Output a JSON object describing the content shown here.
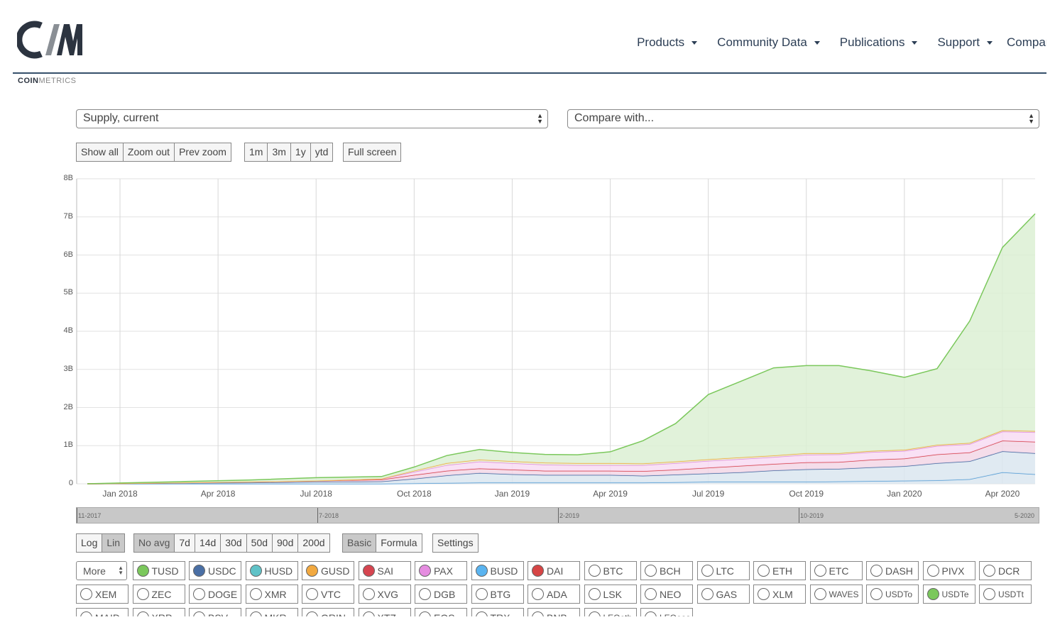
{
  "brand": {
    "logo_letters": "CM",
    "word_bold": "COIN",
    "word_light": "METRICS",
    "color": "#2c3440"
  },
  "nav": {
    "items": [
      {
        "label": "Products"
      },
      {
        "label": "Community Data"
      },
      {
        "label": "Publications"
      },
      {
        "label": "Support"
      }
    ],
    "clipped": "Compar"
  },
  "controls": {
    "metric_select": "Supply, current",
    "compare_select": "Compare with...",
    "zoom_buttons": [
      "Show all",
      "Zoom out",
      "Prev zoom"
    ],
    "range_buttons": [
      "1m",
      "3m",
      "1y",
      "ytd"
    ],
    "fullscreen": "Full screen",
    "scale_buttons": [
      {
        "label": "Log",
        "active": false
      },
      {
        "label": "Lin",
        "active": true
      }
    ],
    "avg_buttons": [
      {
        "label": "No avg",
        "active": true
      },
      {
        "label": "7d",
        "active": false
      },
      {
        "label": "14d",
        "active": false
      },
      {
        "label": "30d",
        "active": false
      },
      {
        "label": "50d",
        "active": false
      },
      {
        "label": "90d",
        "active": false
      },
      {
        "label": "200d",
        "active": false
      }
    ],
    "mode_buttons": [
      {
        "label": "Basic",
        "active": true
      },
      {
        "label": "Formula",
        "active": false
      }
    ],
    "settings": "Settings",
    "more": "More"
  },
  "navigator": {
    "labels": [
      "11-2017",
      "7-2018",
      "2-2019",
      "10-2019",
      "5-2020"
    ]
  },
  "chart_data": {
    "type": "area",
    "stacked": true,
    "x_ticks": [
      "Jan 2018",
      "Apr 2018",
      "Jul 2018",
      "Oct 2018",
      "Jan 2019",
      "Apr 2019",
      "Jul 2019",
      "Oct 2019",
      "Jan 2020",
      "Apr 2020"
    ],
    "y_ticks": [
      "0",
      "1B",
      "2B",
      "3B",
      "4B",
      "5B",
      "6B",
      "7B",
      "8B"
    ],
    "ylim": [
      0,
      8
    ],
    "grid": true,
    "x": [
      "2017-12",
      "2018-01",
      "2018-03",
      "2018-05",
      "2018-07",
      "2018-09",
      "2018-10",
      "2018-11",
      "2018-12",
      "2019-01",
      "2019-02",
      "2019-03",
      "2019-04",
      "2019-05",
      "2019-06",
      "2019-07",
      "2019-08",
      "2019-09",
      "2019-10",
      "2019-11",
      "2019-12",
      "2020-01",
      "2020-02",
      "2020-03",
      "2020-04",
      "2020-05"
    ],
    "series": [
      {
        "name": "USDC",
        "color": "#5a9fd6",
        "values": [
          0,
          0,
          0,
          0,
          0,
          0,
          0.01,
          0.02,
          0.03,
          0.03,
          0.03,
          0.03,
          0.03,
          0.03,
          0.04,
          0.05,
          0.05,
          0.05,
          0.05,
          0.06,
          0.07,
          0.08,
          0.09,
          0.12,
          0.3,
          0.25
        ]
      },
      {
        "name": "TUSD",
        "color": "#4a6fa5",
        "values": [
          0,
          0.01,
          0.02,
          0.03,
          0.05,
          0.06,
          0.12,
          0.2,
          0.25,
          0.22,
          0.2,
          0.2,
          0.2,
          0.18,
          0.2,
          0.22,
          0.25,
          0.3,
          0.33,
          0.33,
          0.36,
          0.38,
          0.45,
          0.47,
          0.55,
          0.55
        ]
      },
      {
        "name": "PAX",
        "color": "#d64550",
        "values": [
          0,
          0,
          0.01,
          0.02,
          0.03,
          0.05,
          0.1,
          0.12,
          0.12,
          0.12,
          0.11,
          0.11,
          0.11,
          0.12,
          0.13,
          0.15,
          0.17,
          0.17,
          0.18,
          0.18,
          0.2,
          0.2,
          0.23,
          0.23,
          0.28,
          0.3
        ]
      },
      {
        "name": "GUSD",
        "color": "#e58ce0",
        "values": [
          0,
          0,
          0,
          0,
          0,
          0.02,
          0.08,
          0.15,
          0.18,
          0.17,
          0.16,
          0.15,
          0.15,
          0.16,
          0.17,
          0.18,
          0.18,
          0.18,
          0.2,
          0.2,
          0.2,
          0.2,
          0.22,
          0.22,
          0.24,
          0.25
        ]
      },
      {
        "name": "SAI",
        "color": "#f2a940",
        "values": [
          0,
          0,
          0,
          0,
          0,
          0,
          0.03,
          0.05,
          0.05,
          0.05,
          0.05,
          0.05,
          0.05,
          0.04,
          0.04,
          0.04,
          0.04,
          0.04,
          0.04,
          0.03,
          0.03,
          0.03,
          0.03,
          0.03,
          0.03,
          0.03
        ]
      },
      {
        "name": "USDTe",
        "color": "#7bc85c",
        "values": [
          0,
          0.01,
          0.03,
          0.05,
          0.08,
          0.06,
          0.1,
          0.2,
          0.27,
          0.23,
          0.22,
          0.22,
          0.3,
          0.6,
          1.0,
          1.7,
          2.0,
          2.3,
          2.3,
          2.3,
          2.1,
          1.9,
          2.0,
          3.2,
          4.8,
          5.7
        ]
      }
    ]
  },
  "assets": {
    "row1": [
      {
        "label": "TUSD",
        "color": "#7bc85c",
        "on": true
      },
      {
        "label": "USDC",
        "color": "#4a6fa5",
        "on": true
      },
      {
        "label": "HUSD",
        "color": "#5fc2c7",
        "on": true
      },
      {
        "label": "GUSD",
        "color": "#f2a940",
        "on": true
      },
      {
        "label": "SAI",
        "color": "#d64550",
        "on": true
      },
      {
        "label": "PAX",
        "color": "#e58ce0",
        "on": true
      },
      {
        "label": "BUSD",
        "color": "#5ab4f0",
        "on": true
      },
      {
        "label": "DAI",
        "color": "#d64545",
        "on": true
      },
      {
        "label": "BTC",
        "on": false
      },
      {
        "label": "BCH",
        "on": false
      },
      {
        "label": "LTC",
        "on": false
      },
      {
        "label": "ETH",
        "on": false
      },
      {
        "label": "ETC",
        "on": false
      },
      {
        "label": "DASH",
        "on": false
      },
      {
        "label": "PIVX",
        "on": false
      },
      {
        "label": "DCR",
        "on": false
      }
    ],
    "row2": [
      {
        "label": "XEM",
        "on": false
      },
      {
        "label": "ZEC",
        "on": false
      },
      {
        "label": "DOGE",
        "on": false
      },
      {
        "label": "XMR",
        "on": false
      },
      {
        "label": "VTC",
        "on": false
      },
      {
        "label": "XVG",
        "on": false
      },
      {
        "label": "DGB",
        "on": false
      },
      {
        "label": "BTG",
        "on": false
      },
      {
        "label": "ADA",
        "on": false
      },
      {
        "label": "LSK",
        "on": false
      },
      {
        "label": "NEO",
        "on": false
      },
      {
        "label": "GAS",
        "on": false
      },
      {
        "label": "XLM",
        "on": false
      },
      {
        "label": "WAVES",
        "on": false
      },
      {
        "label": "USDTo",
        "on": false
      },
      {
        "label": "USDTe",
        "color": "#7bc85c",
        "on": true
      },
      {
        "label": "USDTt",
        "on": false
      }
    ],
    "row3": [
      {
        "label": "MAID",
        "on": false
      },
      {
        "label": "XRP",
        "on": false
      },
      {
        "label": "BSV",
        "on": false
      },
      {
        "label": "MKR",
        "on": false
      },
      {
        "label": "GRIN",
        "on": false
      },
      {
        "label": "XTZ",
        "on": false
      },
      {
        "label": "EOS",
        "on": false
      },
      {
        "label": "TRX",
        "on": false
      },
      {
        "label": "BNB",
        "on": false
      },
      {
        "label": "LEOeth",
        "on": false
      },
      {
        "label": "LEOeos",
        "on": false
      }
    ]
  }
}
